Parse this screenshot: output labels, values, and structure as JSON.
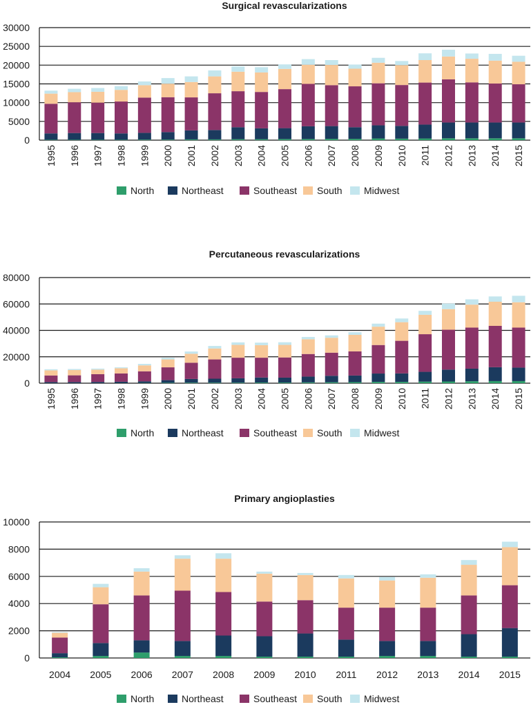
{
  "colors": {
    "North": "#2e9e6b",
    "Northeast": "#1b3a5e",
    "Southeast": "#8b3468",
    "South": "#f8c898",
    "Midwest": "#c4e6ee"
  },
  "chart_data": [
    {
      "type": "bar",
      "stacked": true,
      "title": "Surgical revascularizations",
      "xlabel": "",
      "ylabel": "",
      "ylim": [
        0,
        30000
      ],
      "yticks": [
        0,
        5000,
        10000,
        15000,
        20000,
        25000,
        30000
      ],
      "grid": true,
      "legend_position": "bottom",
      "categories": [
        "1995",
        "1996",
        "1997",
        "1998",
        "1999",
        "2000",
        "2001",
        "2002",
        "2003",
        "2004",
        "2005",
        "2006",
        "2007",
        "2008",
        "2009",
        "2010",
        "2011",
        "2012",
        "2013",
        "2014",
        "2015"
      ],
      "series": [
        {
          "name": "North",
          "values": [
            100,
            100,
            100,
            100,
            150,
            150,
            200,
            200,
            250,
            250,
            300,
            300,
            350,
            350,
            450,
            400,
            450,
            500,
            500,
            500,
            500
          ]
        },
        {
          "name": "Northeast",
          "values": [
            1700,
            1800,
            1800,
            1700,
            1800,
            2000,
            2400,
            2500,
            3200,
            2900,
            2900,
            3400,
            3400,
            3100,
            3500,
            3400,
            3700,
            4200,
            4200,
            4200,
            4200
          ]
        },
        {
          "name": "Southeast",
          "values": [
            7900,
            8200,
            8100,
            8500,
            9400,
            9300,
            8800,
            9800,
            9600,
            9700,
            10400,
            11300,
            10900,
            10900,
            11200,
            10900,
            11200,
            11500,
            10700,
            10400,
            10200
          ]
        },
        {
          "name": "South",
          "values": [
            2700,
            2700,
            2900,
            3100,
            3300,
            3600,
            4100,
            4500,
            5200,
            5200,
            5400,
            5100,
            5400,
            4700,
            5500,
            5300,
            6000,
            6100,
            6300,
            6100,
            6000
          ]
        },
        {
          "name": "Midwest",
          "values": [
            800,
            900,
            1000,
            1000,
            1000,
            1500,
            1500,
            1600,
            1400,
            1400,
            1200,
            1500,
            1300,
            1100,
            1300,
            1100,
            1800,
            1800,
            1400,
            1800,
            1600
          ]
        }
      ]
    },
    {
      "type": "bar",
      "stacked": true,
      "title": "Percutaneous revascularizations",
      "xlabel": "",
      "ylabel": "",
      "ylim": [
        0,
        80000
      ],
      "yticks": [
        0,
        20000,
        40000,
        60000,
        80000
      ],
      "grid": true,
      "legend_position": "bottom",
      "categories": [
        "1995",
        "1996",
        "1997",
        "1998",
        "1999",
        "2000",
        "2001",
        "2002",
        "2003",
        "2004",
        "2005",
        "2006",
        "2007",
        "2008",
        "2009",
        "2010",
        "2011",
        "2012",
        "2013",
        "2014",
        "2015"
      ],
      "series": [
        {
          "name": "North",
          "values": [
            50,
            50,
            50,
            100,
            200,
            300,
            400,
            400,
            400,
            500,
            500,
            600,
            700,
            800,
            1000,
            1000,
            1200,
            1300,
            1500,
            1600,
            1600
          ]
        },
        {
          "name": "Northeast",
          "values": [
            800,
            800,
            900,
            1000,
            1200,
            2000,
            2800,
            3000,
            3300,
            3800,
            3700,
            4400,
            4900,
            5000,
            6300,
            6400,
            7400,
            9000,
            9500,
            10500,
            10200
          ]
        },
        {
          "name": "Southeast",
          "values": [
            5000,
            5100,
            5900,
            6300,
            7600,
            9700,
            12300,
            14600,
            15600,
            15000,
            15300,
            17100,
            17500,
            18300,
            21600,
            24700,
            28500,
            30200,
            31100,
            31300,
            30300
          ]
        },
        {
          "name": "South",
          "values": [
            3900,
            4000,
            3400,
            3900,
            4500,
            6000,
            6800,
            8300,
            9700,
            9500,
            9500,
            11200,
            11300,
            12500,
            13900,
            14100,
            14700,
            15600,
            17400,
            18300,
            19200
          ]
        },
        {
          "name": "Midwest",
          "values": [
            800,
            800,
            800,
            700,
            1100,
            1200,
            1700,
            1900,
            1900,
            1900,
            2000,
            1700,
            1800,
            2000,
            2300,
            2800,
            3000,
            4200,
            4000,
            4000,
            4900
          ]
        }
      ]
    },
    {
      "type": "bar",
      "stacked": true,
      "title": "Primary angioplasties",
      "xlabel": "",
      "ylabel": "",
      "ylim": [
        0,
        10000
      ],
      "yticks": [
        0,
        2000,
        4000,
        6000,
        8000,
        10000
      ],
      "grid": true,
      "legend_position": "bottom",
      "categories": [
        "2004",
        "2005",
        "2006",
        "2007",
        "2008",
        "2009",
        "2010",
        "2011",
        "2012",
        "2013",
        "2014",
        "2015"
      ],
      "series": [
        {
          "name": "North",
          "values": [
            50,
            150,
            400,
            150,
            150,
            100,
            100,
            100,
            150,
            150,
            100,
            100
          ]
        },
        {
          "name": "Northeast",
          "values": [
            300,
            950,
            900,
            1100,
            1500,
            1500,
            1700,
            1250,
            1100,
            1100,
            1650,
            2100
          ]
        },
        {
          "name": "Southeast",
          "values": [
            1150,
            2850,
            3300,
            3700,
            3200,
            2550,
            2450,
            2350,
            2450,
            2450,
            2850,
            3150
          ]
        },
        {
          "name": "South",
          "values": [
            350,
            1250,
            1750,
            2350,
            2450,
            2050,
            1850,
            2150,
            2000,
            2200,
            2250,
            2800
          ]
        },
        {
          "name": "Midwest",
          "values": [
            50,
            250,
            250,
            250,
            400,
            150,
            150,
            250,
            250,
            250,
            350,
            400
          ]
        }
      ]
    }
  ]
}
